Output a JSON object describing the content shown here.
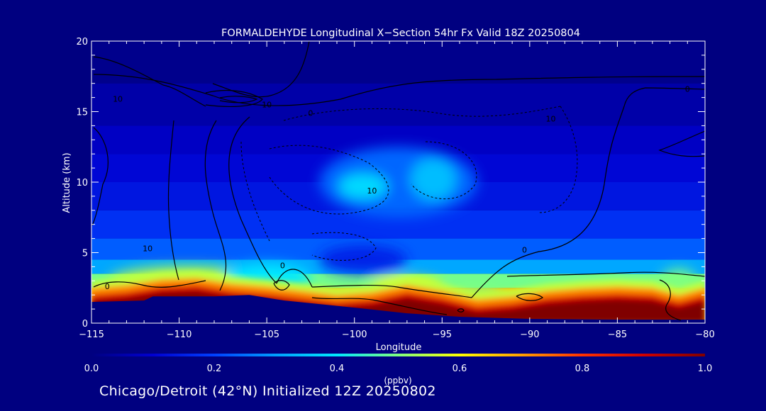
{
  "colors": {
    "background": "#000080",
    "text": "#ffffff",
    "contour": "#000000",
    "terrain": "#00007e",
    "scale": [
      "#000080",
      "#0000d0",
      "#0040ff",
      "#00a0ff",
      "#00e8ff",
      "#80ff80",
      "#ffff00",
      "#ffa000",
      "#ff3000",
      "#d00000",
      "#800000"
    ]
  },
  "chart_data": {
    "type": "heatmap",
    "title": "FORMALDEHYDE Longitudinal X−Section 54hr  Fx Valid 18Z 20250804",
    "xlabel": "Longitude",
    "ylabel": "Altitude (km)",
    "xlim": [
      -115,
      -80
    ],
    "ylim": [
      0,
      20
    ],
    "x_ticks": [
      -115,
      -110,
      -105,
      -100,
      -95,
      -90,
      -85,
      -80
    ],
    "x_tick_labels": [
      "−115",
      "−110",
      "−105",
      "−100",
      "−95",
      "−90",
      "−85",
      "−80"
    ],
    "y_ticks": [
      0,
      5,
      10,
      15,
      20
    ],
    "y_tick_labels": [
      "0",
      "5",
      "10",
      "15",
      "20"
    ],
    "colorbar": {
      "min": 0.0,
      "max": 1.0,
      "ticks": [
        0.0,
        0.2,
        0.4,
        0.6,
        0.8,
        1.0
      ],
      "tick_labels": [
        "0.0",
        "0.2",
        "0.4",
        "0.6",
        "0.8",
        "1.0"
      ],
      "units": "(ppbv)"
    },
    "fields": {
      "base_levels": [
        {
          "alt": 0,
          "value": 0.72
        },
        {
          "alt": 2.5,
          "value": 0.62
        },
        {
          "alt": 3.5,
          "value": 0.36
        },
        {
          "alt": 4.5,
          "value": 0.26
        },
        {
          "alt": 6,
          "value": 0.2
        },
        {
          "alt": 8,
          "value": 0.15
        },
        {
          "alt": 10,
          "value": 0.12
        },
        {
          "alt": 12,
          "value": 0.1
        },
        {
          "alt": 14,
          "value": 0.07
        },
        {
          "alt": 17,
          "value": 0.03
        },
        {
          "alt": 20,
          "value": 0.0
        }
      ],
      "terrain_km": [
        {
          "lon": -115,
          "alt": 1.5
        },
        {
          "lon": -112,
          "alt": 1.6
        },
        {
          "lon": -111.5,
          "alt": 1.9
        },
        {
          "lon": -108,
          "alt": 1.9
        },
        {
          "lon": -106,
          "alt": 2.0
        },
        {
          "lon": -104,
          "alt": 1.6
        },
        {
          "lon": -100,
          "alt": 1.1
        },
        {
          "lon": -97,
          "alt": 0.7
        },
        {
          "lon": -94,
          "alt": 0.45
        },
        {
          "lon": -90,
          "alt": 0.3
        },
        {
          "lon": -85,
          "alt": 0.25
        },
        {
          "lon": -80,
          "alt": 0.25
        }
      ],
      "surface_layer_top_km": [
        {
          "lon": -115,
          "alt": 2.2
        },
        {
          "lon": -113,
          "alt": 2.4
        },
        {
          "lon": -111,
          "alt": 2.8
        },
        {
          "lon": -109,
          "alt": 2.9
        },
        {
          "lon": -107,
          "alt": 2.5
        },
        {
          "lon": -105,
          "alt": 2.3
        },
        {
          "lon": -103,
          "alt": 2.0
        },
        {
          "lon": -101,
          "alt": 1.7
        },
        {
          "lon": -99,
          "alt": 1.9
        },
        {
          "lon": -97,
          "alt": 2.4
        },
        {
          "lon": -95,
          "alt": 2.0
        },
        {
          "lon": -93,
          "alt": 1.4
        },
        {
          "lon": -91,
          "alt": 1.6
        },
        {
          "lon": -89,
          "alt": 2.0
        },
        {
          "lon": -87,
          "alt": 2.2
        },
        {
          "lon": -85,
          "alt": 2.3
        },
        {
          "lon": -83,
          "alt": 2.2
        },
        {
          "lon": -81.5,
          "alt": 1.7
        },
        {
          "lon": -80,
          "alt": 2.2
        }
      ],
      "features": [
        {
          "lon": -109.5,
          "alt": 3.0,
          "rx": 4.5,
          "ry": 1.0,
          "value": 0.55
        },
        {
          "lon": -105,
          "alt": 3.2,
          "rx": 2.5,
          "ry": 1.0,
          "value": 0.4
        },
        {
          "lon": -97,
          "alt": 2.6,
          "rx": 2.0,
          "ry": 0.6,
          "value": 0.6
        },
        {
          "lon": -93,
          "alt": 2.2,
          "rx": 1.5,
          "ry": 0.5,
          "value": 0.5
        },
        {
          "lon": -99.5,
          "alt": 9.7,
          "rx": 1.4,
          "ry": 0.9,
          "value": 0.38
        },
        {
          "lon": -95.5,
          "alt": 10.2,
          "rx": 1.3,
          "ry": 1.5,
          "value": 0.34
        },
        {
          "lon": -97.5,
          "alt": 10.0,
          "rx": 4.5,
          "ry": 2.5,
          "value": 0.24
        },
        {
          "lon": -99.5,
          "alt": 4.5,
          "rx": 2.5,
          "ry": 1.0,
          "value": 0.15
        },
        {
          "lon": -81.5,
          "alt": 3.0,
          "rx": 1.0,
          "ry": 0.8,
          "value": 0.5
        }
      ]
    },
    "contours": {
      "solid_labels": [
        {
          "text": "10",
          "lon": -113.5,
          "alt": 15.7
        },
        {
          "text": "10",
          "lon": -105,
          "alt": 15.3
        },
        {
          "text": "0",
          "lon": -102.5,
          "alt": 14.7
        },
        {
          "text": "10",
          "lon": -111.8,
          "alt": 5.1
        },
        {
          "text": "0",
          "lon": -114.1,
          "alt": 2.4
        },
        {
          "text": "0",
          "lon": -104.1,
          "alt": 3.9
        },
        {
          "text": "0",
          "lon": -90.3,
          "alt": 5.0
        },
        {
          "text": "0",
          "lon": -81,
          "alt": 16.4
        }
      ],
      "dashed_labels": [
        {
          "text": "10",
          "lon": -88.8,
          "alt": 14.3
        },
        {
          "text": "10",
          "lon": -99,
          "alt": 9.2
        }
      ]
    },
    "annotation": "Chicago/Detroit (42°N) Initialized 12Z 20250802"
  }
}
